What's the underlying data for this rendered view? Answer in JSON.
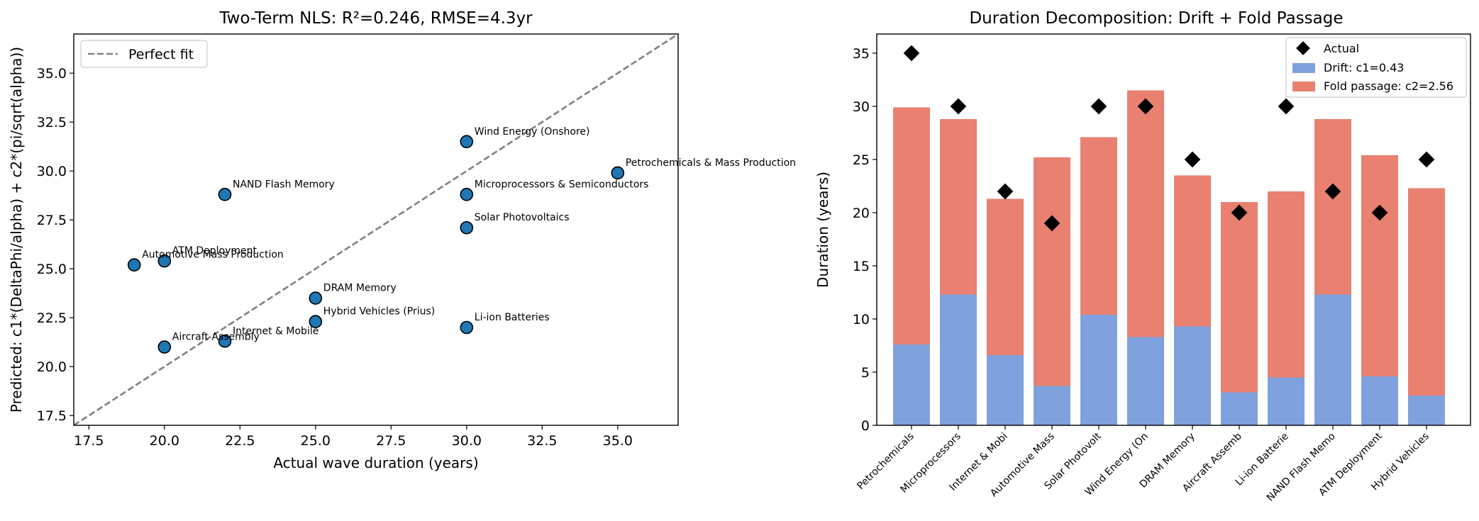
{
  "chart_data": [
    {
      "type": "scatter",
      "title": "Two-Term NLS: R²=0.246, RMSE=4.3yr",
      "xlabel": "Actual wave duration (years)",
      "ylabel": "Predicted: c1*(DeltaPhi/alpha) + c2*(pi/sqrt(alpha))",
      "xlim": [
        17,
        37
      ],
      "ylim": [
        17,
        37
      ],
      "xticks": [
        17.5,
        20.0,
        22.5,
        25.0,
        27.5,
        30.0,
        32.5,
        35.0
      ],
      "yticks": [
        17.5,
        20.0,
        22.5,
        25.0,
        27.5,
        30.0,
        32.5,
        35.0
      ],
      "legend": {
        "label": "Perfect fit",
        "position": "top-left"
      },
      "reference_line": {
        "from": [
          17,
          17
        ],
        "to": [
          37,
          37
        ],
        "style": "dashed",
        "color": "#808080"
      },
      "marker_color": "#1f77b4",
      "points": [
        {
          "label": "Petrochemicals & Mass Production",
          "x": 35,
          "y": 29.9
        },
        {
          "label": "Microprocessors & Semiconductors",
          "x": 30,
          "y": 28.8
        },
        {
          "label": "Internet & Mobile",
          "x": 22,
          "y": 21.3
        },
        {
          "label": "Automotive Mass Production",
          "x": 19,
          "y": 25.2
        },
        {
          "label": "Solar Photovoltaics",
          "x": 30,
          "y": 27.1
        },
        {
          "label": "Wind Energy (Onshore)",
          "x": 30,
          "y": 31.5
        },
        {
          "label": "DRAM Memory",
          "x": 25,
          "y": 23.5
        },
        {
          "label": "Aircraft Assembly",
          "x": 20,
          "y": 21.0
        },
        {
          "label": "Li-ion Batteries",
          "x": 30,
          "y": 22.0
        },
        {
          "label": "NAND Flash Memory",
          "x": 22,
          "y": 28.8
        },
        {
          "label": "ATM Deployment",
          "x": 20,
          "y": 25.4
        },
        {
          "label": "Hybrid Vehicles (Prius)",
          "x": 25,
          "y": 22.3
        }
      ]
    },
    {
      "type": "bar",
      "stacked": true,
      "title": "Duration Decomposition: Drift + Fold Passage",
      "xlabel": "",
      "ylabel": "Duration (years)",
      "ylim": [
        0,
        36.8
      ],
      "yticks": [
        0,
        5,
        10,
        15,
        20,
        25,
        30,
        35
      ],
      "categories": [
        "Petrochemicals",
        "Microprocessors",
        "Internet & Mobi",
        "Automotive Mass",
        "Solar Photovolt",
        "Wind Energy (On",
        "DRAM Memory",
        "Aircraft Assemb",
        "Li-ion Batterie",
        "NAND Flash Memo",
        "ATM Deployment",
        "Hybrid Vehicles"
      ],
      "series": [
        {
          "name": "Drift: c1=0.43",
          "color": "#7fa1dd",
          "values": [
            7.6,
            12.3,
            6.6,
            3.7,
            10.4,
            8.3,
            9.3,
            3.1,
            4.5,
            12.3,
            4.6,
            2.8
          ]
        },
        {
          "name": "Fold passage: c2=2.56",
          "color": "#e98070",
          "values": [
            22.3,
            16.5,
            14.7,
            21.5,
            16.7,
            23.2,
            14.2,
            17.9,
            17.5,
            16.5,
            20.8,
            19.5
          ]
        }
      ],
      "actual": {
        "name": "Actual",
        "color": "#000000",
        "values": [
          35,
          30,
          22,
          19,
          30,
          30,
          25,
          20,
          30,
          22,
          20,
          25
        ]
      },
      "legend_position": "top-right"
    }
  ]
}
